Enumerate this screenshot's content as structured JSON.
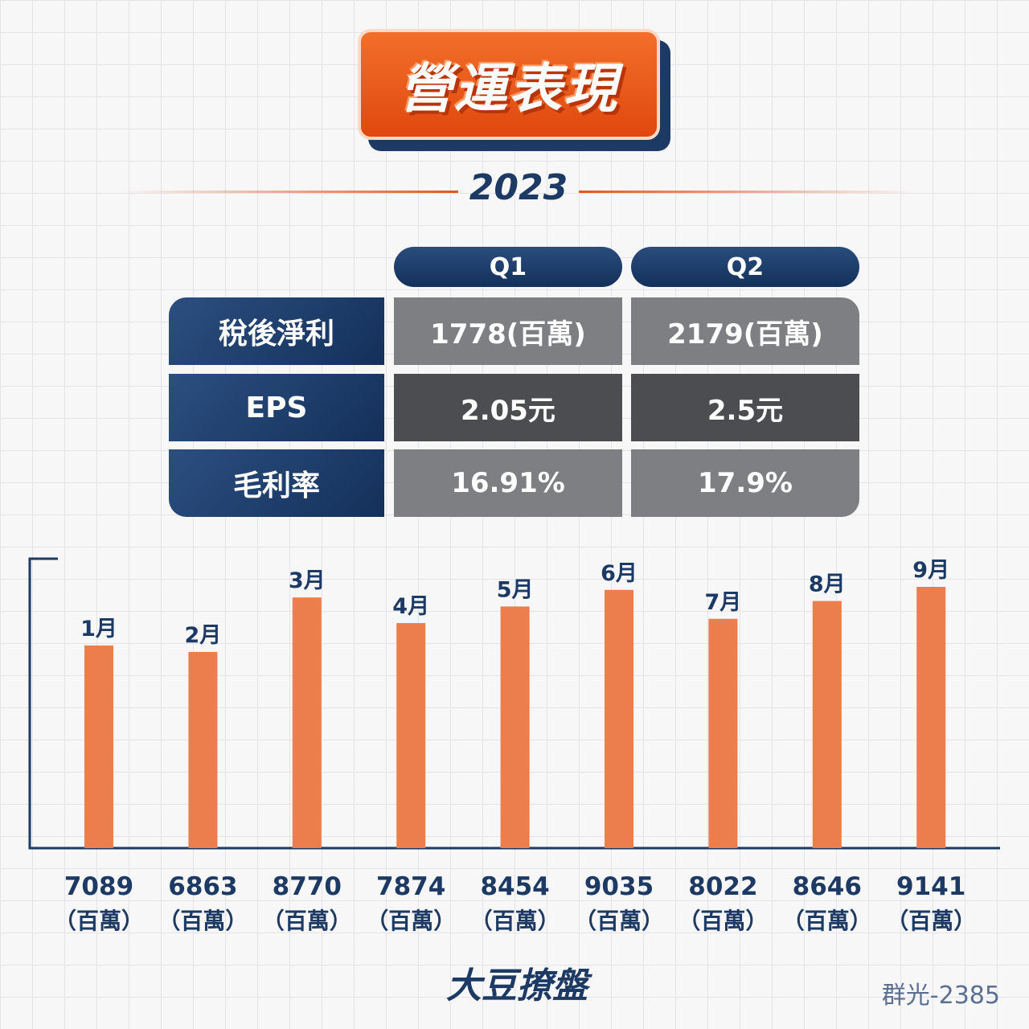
{
  "header": {
    "title": "營運表現",
    "year": "2023"
  },
  "table": {
    "quarters": [
      "Q1",
      "Q2"
    ],
    "rows": [
      {
        "label": "稅後淨利",
        "values": [
          "1778(百萬)",
          "2179(百萬)"
        ]
      },
      {
        "label": "EPS",
        "values": [
          "2.05元",
          "2.5元"
        ]
      },
      {
        "label": "毛利率",
        "values": [
          "16.91%",
          "17.9%"
        ]
      }
    ]
  },
  "chart_data": {
    "type": "bar",
    "categories": [
      "1月",
      "2月",
      "3月",
      "4月",
      "5月",
      "6月",
      "7月",
      "8月",
      "9月"
    ],
    "values": [
      7089,
      6863,
      8770,
      7874,
      8454,
      9035,
      8022,
      8646,
      9141
    ],
    "value_labels": [
      "7089",
      "6863",
      "8770",
      "7874",
      "8454",
      "9035",
      "8022",
      "8646",
      "9141"
    ],
    "unit_label": "（百萬）",
    "bar_color": "#ec7e4e",
    "ylim": [
      0,
      9500
    ]
  },
  "footer": {
    "brand": "大豆撩盤",
    "stock": "群光-2385"
  }
}
